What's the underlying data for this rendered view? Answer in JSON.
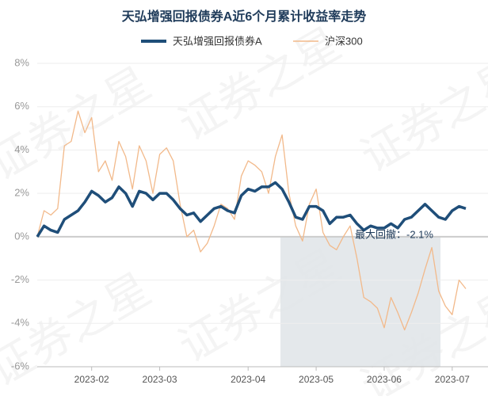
{
  "chart_data": {
    "type": "line",
    "title": "天弘增强回报债券A近6个月累计收益率走势",
    "watermark": "证券之星",
    "annotation": "最大回撤：-2.1%",
    "categories": [
      null,
      null,
      null,
      null,
      null,
      null,
      null,
      null,
      "2023-02",
      null,
      null,
      null,
      null,
      null,
      null,
      null,
      null,
      null,
      "2023-03",
      null,
      null,
      null,
      null,
      null,
      null,
      null,
      null,
      null,
      null,
      null,
      null,
      "2023-04",
      null,
      null,
      null,
      null,
      null,
      null,
      null,
      null,
      null,
      "2023-05",
      null,
      null,
      null,
      null,
      null,
      null,
      null,
      null,
      null,
      "2023-06",
      null,
      null,
      null,
      null,
      null,
      null,
      null,
      null,
      null,
      "2023-07",
      null,
      null
    ],
    "series": [
      {
        "name": "天弘增强回报债券A",
        "color": "#1f4e79",
        "values": [
          0,
          0.5,
          0.3,
          0.2,
          0.8,
          1.0,
          1.2,
          1.6,
          2.1,
          1.9,
          1.6,
          1.8,
          2.3,
          2.0,
          1.4,
          2.1,
          2.0,
          1.7,
          2.0,
          2.0,
          1.7,
          1.3,
          1.0,
          1.1,
          0.7,
          1.0,
          1.3,
          1.4,
          1.2,
          1.1,
          1.9,
          2.2,
          2.1,
          2.3,
          2.3,
          2.5,
          2.2,
          1.6,
          0.9,
          0.8,
          1.4,
          1.4,
          1.2,
          0.6,
          0.9,
          0.9,
          1.0,
          0.6,
          0.3,
          0.5,
          0.4,
          0.4,
          0.6,
          0.4,
          0.8,
          0.9,
          1.2,
          1.5,
          1.2,
          0.9,
          0.8,
          1.2,
          1.4,
          1.3
        ]
      },
      {
        "name": "沪深300",
        "color": "#f2b98a",
        "values": [
          0,
          1.2,
          1.0,
          1.3,
          4.2,
          4.4,
          5.8,
          4.8,
          5.5,
          3.0,
          3.5,
          2.6,
          4.4,
          3.7,
          2.2,
          4.2,
          3.5,
          2.0,
          3.8,
          4.1,
          3.5,
          1.5,
          0.0,
          0.3,
          -0.7,
          -0.3,
          0.5,
          1.5,
          1.3,
          0.8,
          2.8,
          3.5,
          3.3,
          3.0,
          2.0,
          3.7,
          4.7,
          2.0,
          0.5,
          -0.2,
          1.5,
          2.2,
          0.2,
          -0.4,
          -0.6,
          0.0,
          0.5,
          -1.0,
          -2.8,
          -3.0,
          -3.3,
          -4.2,
          -2.8,
          -3.5,
          -4.3,
          -3.5,
          -2.6,
          -1.5,
          -0.5,
          -2.5,
          -3.2,
          -3.6,
          -2.0,
          -2.4
        ]
      }
    ],
    "ylim": [
      -6,
      8
    ],
    "yticks": [
      {
        "value": -6,
        "label": "-6%"
      },
      {
        "value": -4,
        "label": "-4%"
      },
      {
        "value": -2,
        "label": "-2%"
      },
      {
        "value": 0,
        "label": "0%"
      },
      {
        "value": 2,
        "label": "2%"
      },
      {
        "value": 4,
        "label": "4%"
      },
      {
        "value": 6,
        "label": "6%"
      },
      {
        "value": 8,
        "label": "8%"
      }
    ],
    "grid": true
  }
}
